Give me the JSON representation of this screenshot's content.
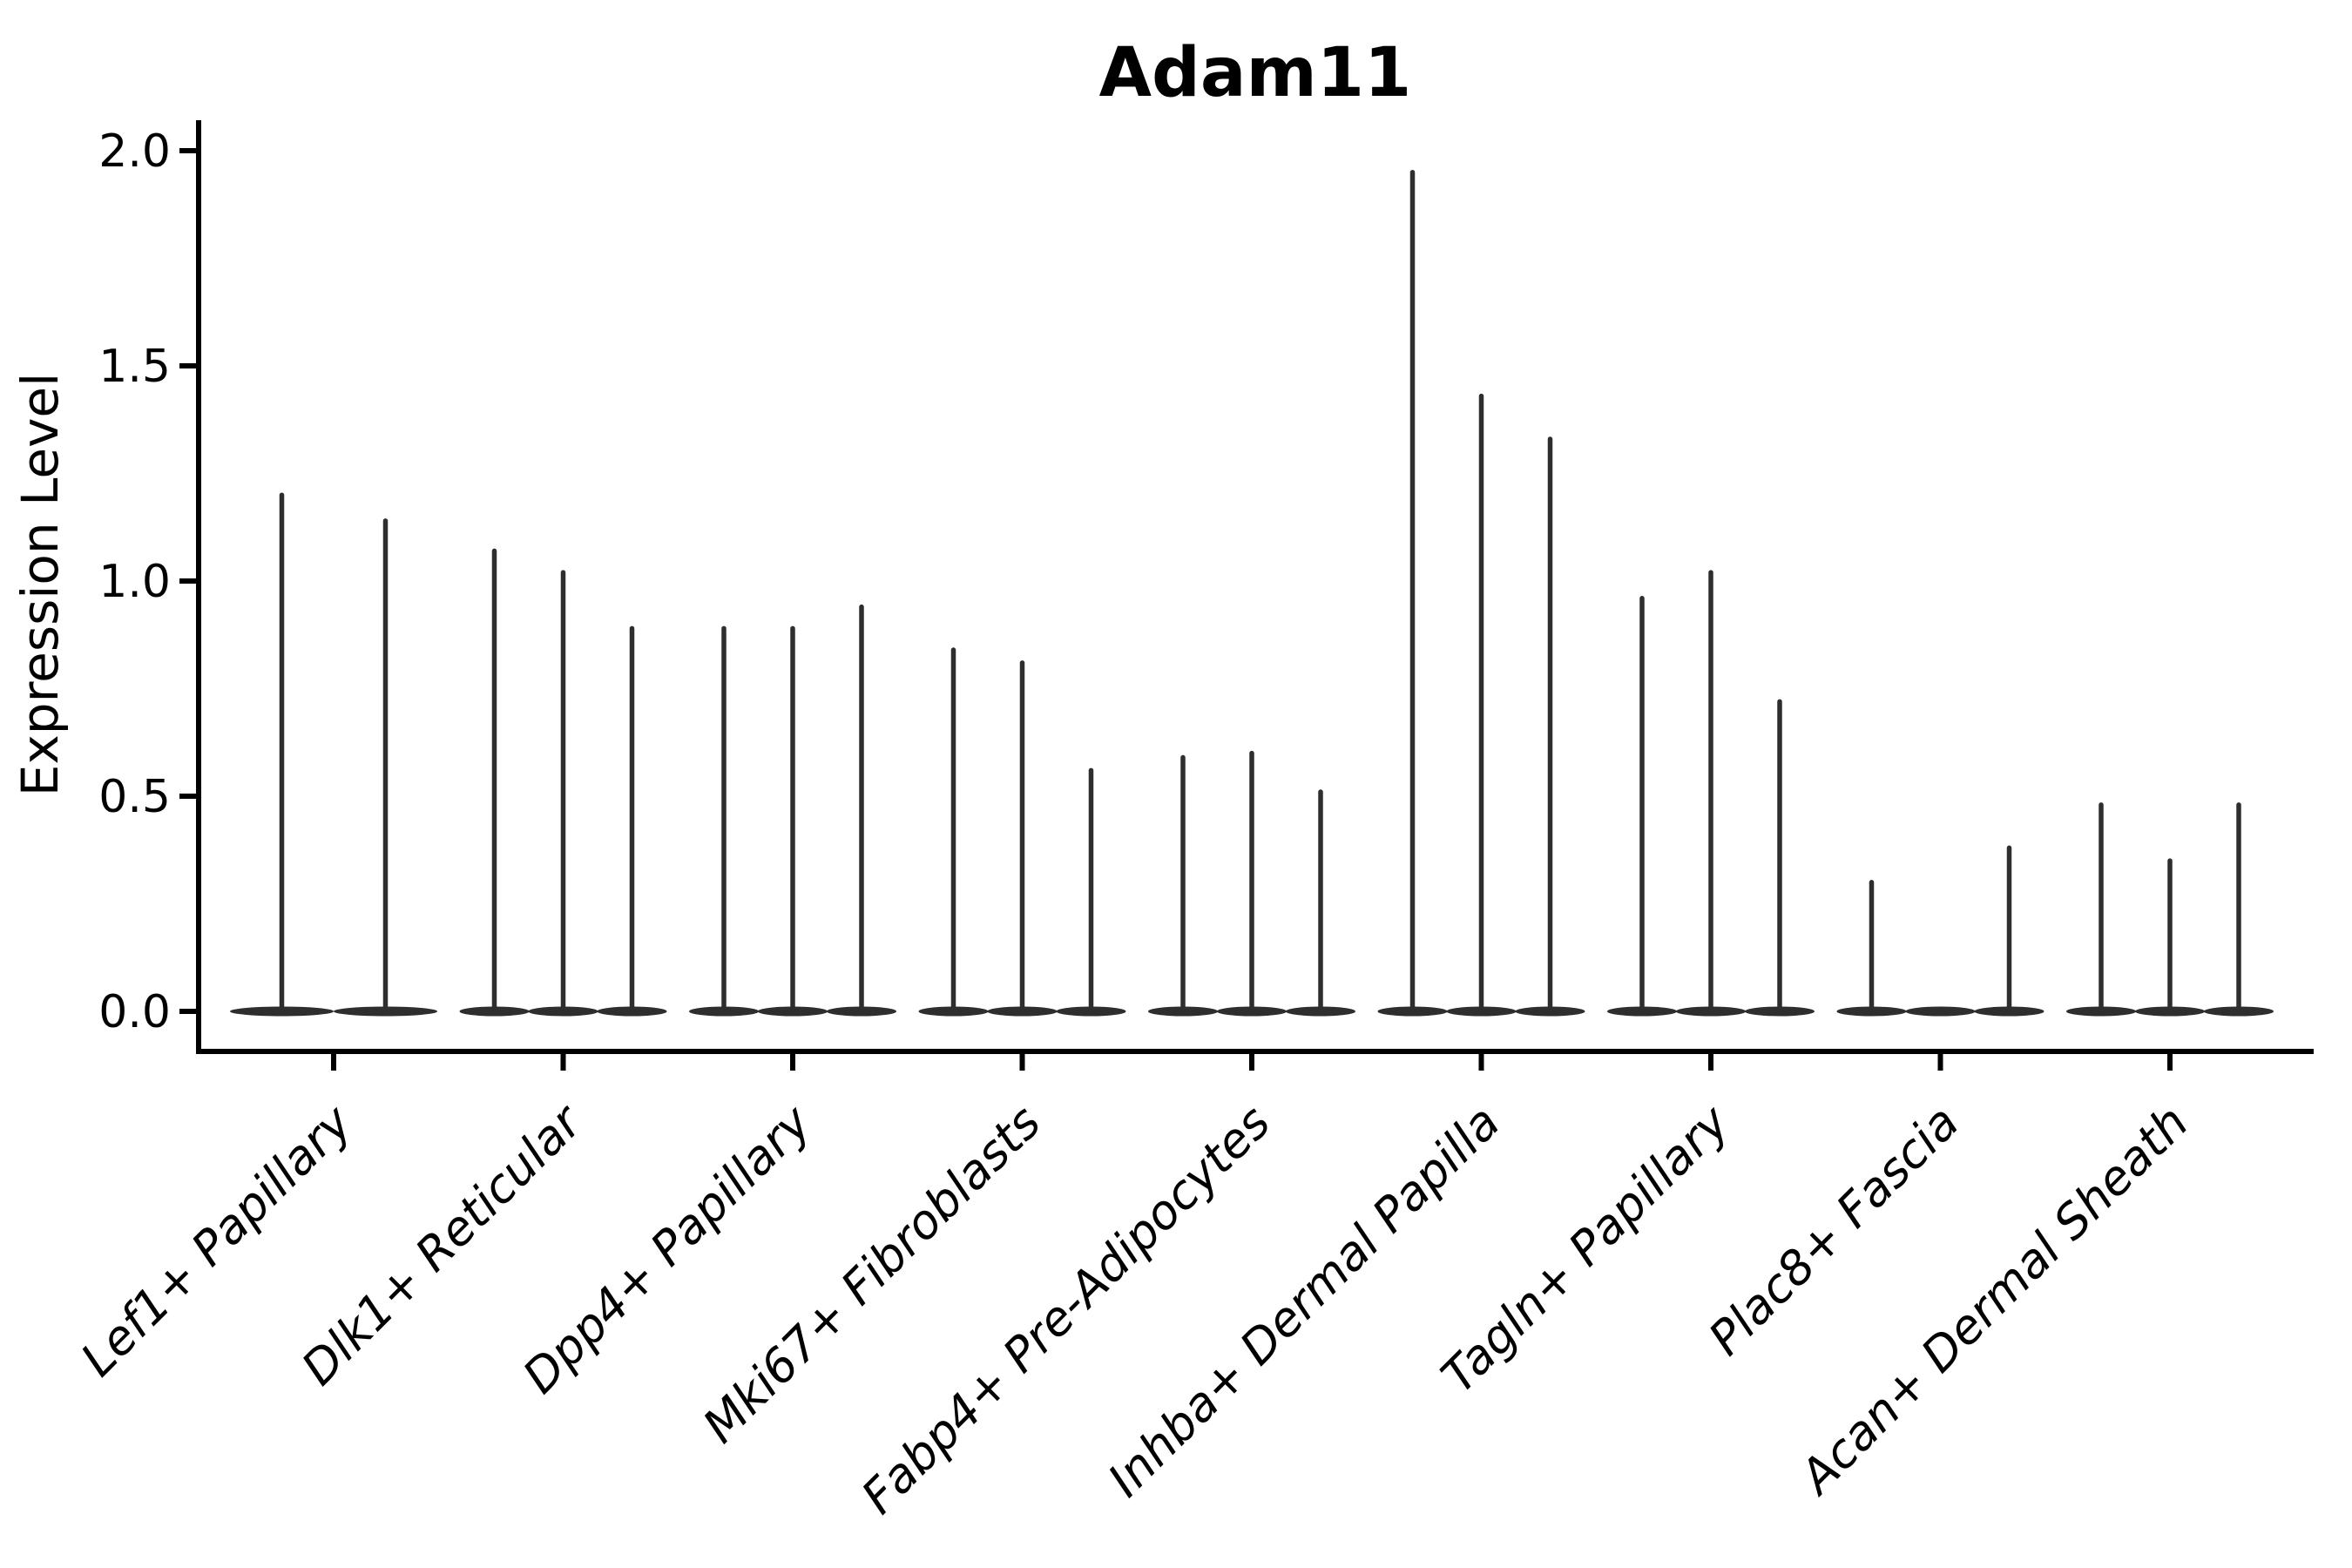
{
  "title": "Adam11",
  "y_axis": {
    "label": "Expression Level",
    "tick_labels": [
      "0.0",
      "0.5",
      "1.0",
      "1.5",
      "2.0"
    ]
  },
  "chart_data": {
    "type": "violin",
    "title": "Adam11",
    "xlabel": "",
    "ylabel": "Expression Level",
    "ylim": [
      0,
      2.07
    ],
    "yticks": [
      0.0,
      0.5,
      1.0,
      1.5,
      2.0
    ],
    "grid": false,
    "legend": "none",
    "categories": [
      "Lef1+ Papillary",
      "Dlk1+ Reticular",
      "Dpp4+ Papillary",
      "Mki67+ Fibroblasts",
      "Fabp4+ Pre-Adipocytes",
      "Inhba+ Dermal Papilla",
      "Tagln+ Papillary",
      "Plac8+ Fascia",
      "Acan+ Dermal Sheath"
    ],
    "groups": [
      {
        "category": "Lef1+ Papillary",
        "violin_maxima": [
          1.2,
          1.14
        ]
      },
      {
        "category": "Dlk1+ Reticular",
        "violin_maxima": [
          1.07,
          1.02,
          0.89
        ]
      },
      {
        "category": "Dpp4+ Papillary",
        "violin_maxima": [
          0.89,
          0.89,
          0.94
        ]
      },
      {
        "category": "Mki67+ Fibroblasts",
        "violin_maxima": [
          0.84,
          0.81,
          0.56
        ]
      },
      {
        "category": "Fabp4+ Pre-Adipocytes",
        "violin_maxima": [
          0.59,
          0.6,
          0.51
        ]
      },
      {
        "category": "Inhba+ Dermal Papilla",
        "violin_maxima": [
          1.95,
          1.43,
          1.33
        ]
      },
      {
        "category": "Tagln+ Papillary",
        "violin_maxima": [
          0.96,
          1.02,
          0.72
        ]
      },
      {
        "category": "Plac8+ Fascia",
        "violin_maxima": [
          0.3,
          0.0,
          0.38
        ]
      },
      {
        "category": "Acan+ Dermal Sheath",
        "violin_maxima": [
          0.48,
          0.35,
          0.48
        ]
      }
    ],
    "description": "Violin plot of Adam11 expression; each cell-type group contains thin spike-like violins (one per sample), mostly flat at 0 with a narrow tail up to the listed maximum.",
    "colors": {
      "violin_stroke": "#2e2e2e",
      "axis_stroke": "#000000",
      "background": "#ffffff"
    }
  }
}
